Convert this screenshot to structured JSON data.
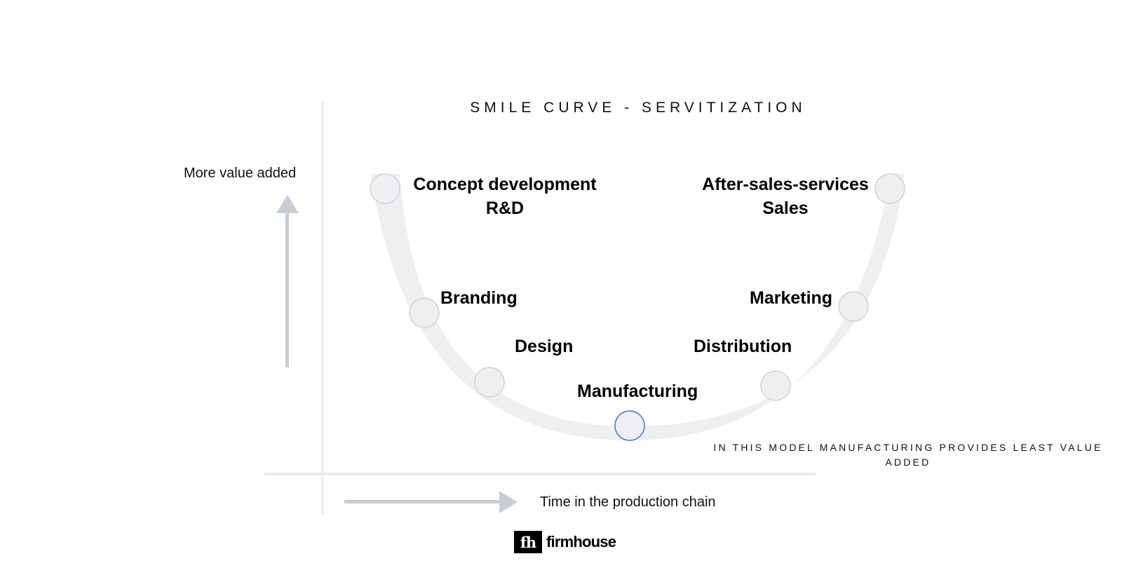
{
  "title": "SMILE CURVE - SERVITIZATION",
  "y_axis_label": "More value added",
  "x_axis_label": "Time in the production chain",
  "stages": {
    "concept": {
      "line1": "Concept development",
      "line2": "R&D"
    },
    "after_sales": {
      "line1": "After-sales-services",
      "line2": "Sales"
    },
    "branding": "Branding",
    "marketing": "Marketing",
    "design": "Design",
    "distribution": "Distribution",
    "manufacturing": "Manufacturing"
  },
  "note": "IN THIS MODEL MANUFACTURING PROVIDES LEAST VALUE ADDED",
  "highlighted_stage": "Manufacturing",
  "colors": {
    "curve": "#eeeff1",
    "marker_stroke": "#cfd2d7",
    "highlight_stroke": "#3d6fe0",
    "arrow": "#c7cdd6",
    "axis": "#e9eaec"
  },
  "logo": {
    "mark": "fh",
    "text": "firmhouse"
  }
}
